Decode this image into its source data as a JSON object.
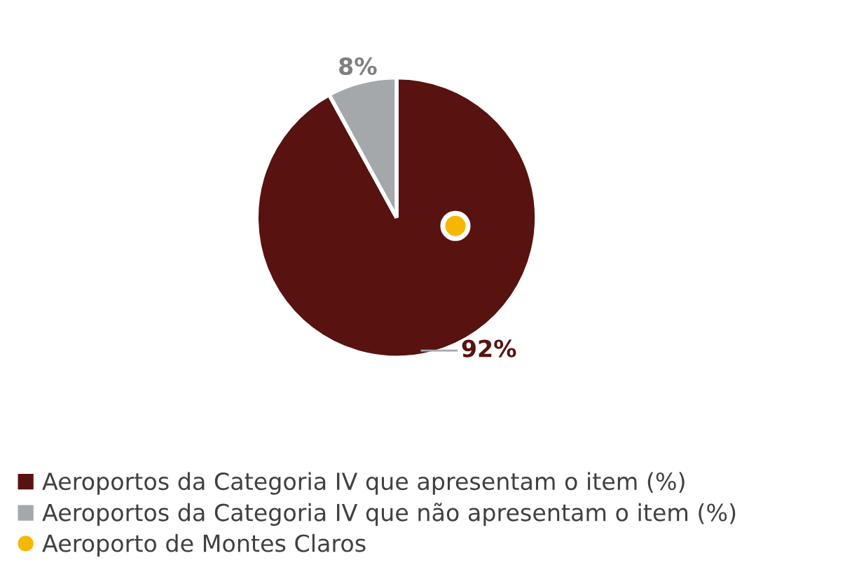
{
  "chart_data": {
    "type": "pie",
    "categories": [
      "Aeroportos da Categoria IV que apresentam o item (%)",
      "Aeroportos da Categoria IV que não apresentam o item (%)"
    ],
    "values": [
      92,
      8
    ],
    "colors": [
      "#58120f",
      "#a5a8ab"
    ],
    "value_labels": [
      "92%",
      "8%"
    ],
    "annotations": [
      "Aeroporto de Montes Claros"
    ],
    "legend": "bottom"
  }
}
